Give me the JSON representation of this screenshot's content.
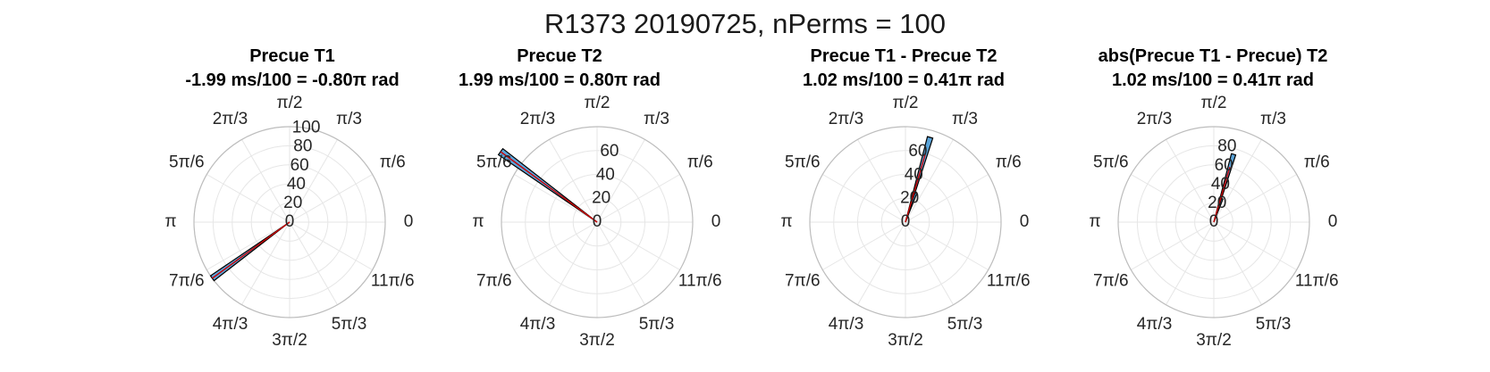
{
  "figure": {
    "title": "R1373 20190725, nPerms = 100"
  },
  "colors": {
    "bar_fill": "#5aa3d8",
    "bar_edge": "#000000",
    "mean_vector": "#cc0000",
    "grid": "#e6e6e6",
    "outer_ring": "#bdbdbd",
    "tick_text": "#262626"
  },
  "angle_tick_labels": [
    "0",
    "π/6",
    "π/3",
    "π/2",
    "2π/3",
    "5π/6",
    "π",
    "7π/6",
    "4π/3",
    "3π/2",
    "5π/3",
    "11π/6"
  ],
  "chart_data": [
    {
      "type": "polar-histogram",
      "title": "Precue T1",
      "subtitle": "-1.99 ms/100 = -0.80π rad",
      "rlim": [
        0,
        100
      ],
      "r_ticks": [
        0,
        20,
        40,
        60,
        80,
        100
      ],
      "theta_ticks_rad": [
        0,
        0.5236,
        1.0472,
        1.5708,
        2.0944,
        2.618,
        3.1416,
        3.6652,
        4.1888,
        4.7124,
        5.236,
        5.7596
      ],
      "bars": [
        {
          "theta_center_rad": 3.77,
          "width_rad": 0.063,
          "count": 100
        }
      ],
      "mean_vector": {
        "angle_rad": 3.77,
        "length": 100
      }
    },
    {
      "type": "polar-histogram",
      "title": "Precue T2",
      "subtitle": "1.99 ms/100 = 0.80π rad",
      "rlim": [
        0,
        80
      ],
      "r_ticks": [
        0,
        20,
        40,
        60
      ],
      "theta_ticks_rad": [
        0,
        0.5236,
        1.0472,
        1.5708,
        2.0944,
        2.618,
        3.1416,
        3.6652,
        4.1888,
        4.7124,
        5.236,
        5.7596
      ],
      "bars": [
        {
          "theta_center_rad": 2.51,
          "width_rad": 0.063,
          "count": 100
        }
      ],
      "mean_vector": {
        "angle_rad": 2.51,
        "length": 100
      }
    },
    {
      "type": "polar-histogram",
      "title": "Precue T1 - Precue T2",
      "subtitle": "1.02 ms/100 = 0.41π rad",
      "rlim": [
        0,
        80
      ],
      "r_ticks": [
        0,
        20,
        40,
        60
      ],
      "theta_ticks_rad": [
        0,
        0.5236,
        1.0472,
        1.5708,
        2.0944,
        2.618,
        3.1416,
        3.6652,
        4.1888,
        4.7124,
        5.236,
        5.7596
      ],
      "bars": [
        {
          "theta_center_rad": 1.288,
          "width_rad": 0.063,
          "count": 74
        },
        {
          "theta_center_rad": 1.225,
          "width_rad": 0.063,
          "count": 26
        }
      ],
      "mean_vector": {
        "angle_rad": 1.288,
        "length": 60
      }
    },
    {
      "type": "polar-histogram",
      "title": "abs(Precue T1 - Precue) T2",
      "subtitle": "1.02 ms/100 = 0.41π rad",
      "rlim": [
        0,
        100
      ],
      "r_ticks": [
        0,
        20,
        40,
        60,
        80
      ],
      "theta_ticks_rad": [
        0,
        0.5236,
        1.0472,
        1.5708,
        2.0944,
        2.618,
        3.1416,
        3.6652,
        4.1888,
        4.7124,
        5.236,
        5.7596
      ],
      "bars": [
        {
          "theta_center_rad": 1.288,
          "width_rad": 0.063,
          "count": 74
        },
        {
          "theta_center_rad": 1.225,
          "width_rad": 0.063,
          "count": 26
        }
      ],
      "mean_vector": {
        "angle_rad": 1.288,
        "length": 60
      }
    }
  ]
}
